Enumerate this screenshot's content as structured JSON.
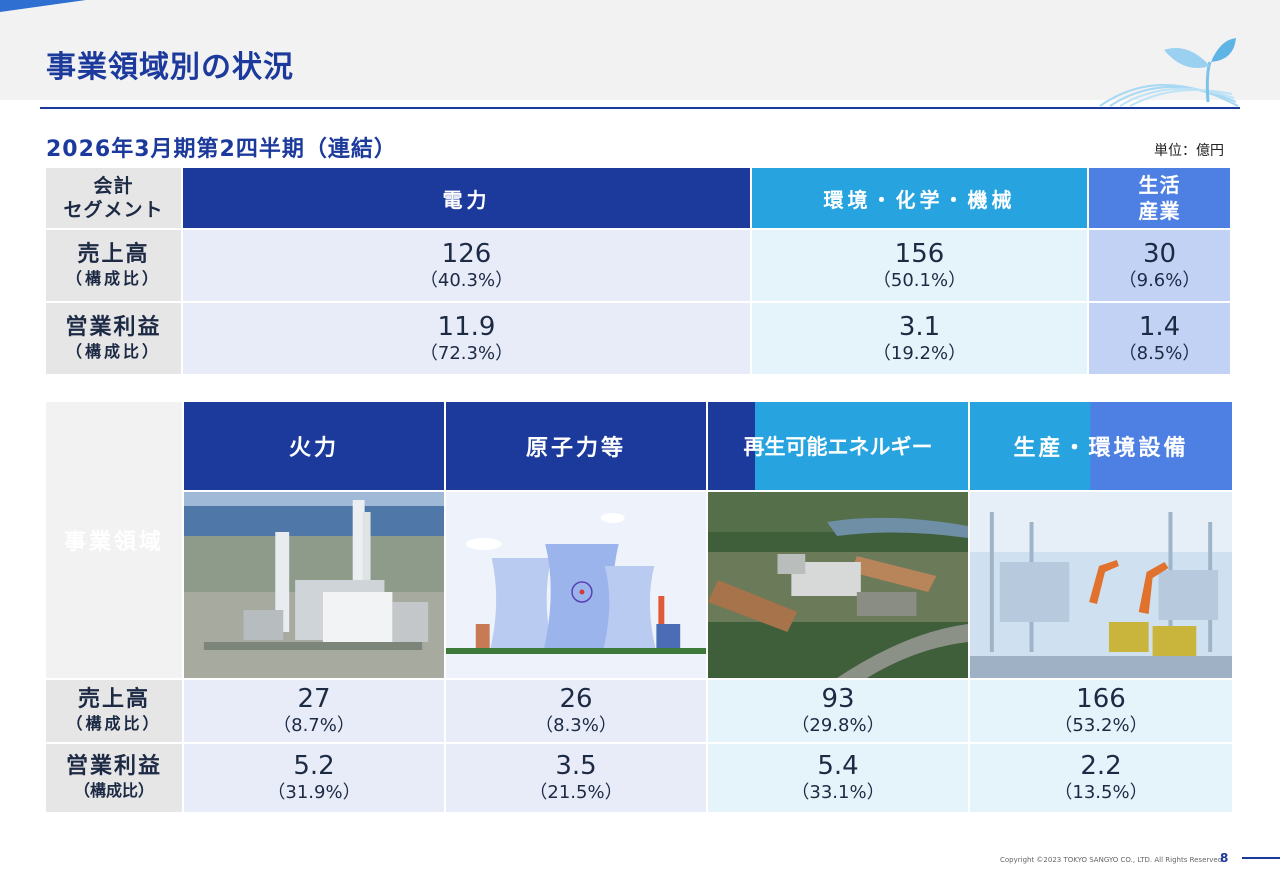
{
  "header": {
    "title": "事業領域別の状況"
  },
  "subtitle": "2026年3月期第2四半期（連結）",
  "unit": "単位：億円",
  "segment_table": {
    "corner_label": [
      "会計",
      "セグメント"
    ],
    "columns": [
      {
        "label": "電力",
        "color": "#1c3a9c"
      },
      {
        "label": "環境・化学・機械",
        "color": "#27a3df"
      },
      {
        "label": "生活産業",
        "label_lines": [
          "生活",
          "産業"
        ],
        "color": "#4e7fe3"
      }
    ],
    "rows": [
      {
        "label": "売上高",
        "sublabel": "（構成比）",
        "cells": [
          {
            "value": "126",
            "ratio": "（40.3%）"
          },
          {
            "value": "156",
            "ratio": "（50.1%）"
          },
          {
            "value": "30",
            "ratio": "（9.6%）"
          }
        ]
      },
      {
        "label": "営業利益",
        "sublabel": "（構成比）",
        "cells": [
          {
            "value": "11.9",
            "ratio": "（72.3%）"
          },
          {
            "value": "3.1",
            "ratio": "（19.2%）"
          },
          {
            "value": "1.4",
            "ratio": "（8.5%）"
          }
        ]
      }
    ]
  },
  "area_table": {
    "corner_label": "事業領域",
    "columns": [
      {
        "label": "火力",
        "image": "thermal-power-plant-photo"
      },
      {
        "label": "原子力等",
        "image": "nuclear-cooling-towers-illustration"
      },
      {
        "label": "再生可能エネルギー",
        "image": "biomass-power-plant-photo"
      },
      {
        "label": "生産・環境設備",
        "image": "factory-robot-line-photo"
      }
    ],
    "rows": [
      {
        "label": "売上高",
        "sublabel": "（構成比）",
        "cells": [
          {
            "value": "27",
            "ratio": "（8.7%）"
          },
          {
            "value": "26",
            "ratio": "（8.3%）"
          },
          {
            "value": "93",
            "ratio": "（29.8%）"
          },
          {
            "value": "166",
            "ratio": "（53.2%）"
          }
        ]
      },
      {
        "label": "営業利益",
        "sublabel": "（構成比）",
        "cells": [
          {
            "value": "5.2",
            "ratio": "（31.9%）"
          },
          {
            "value": "3.5",
            "ratio": "（21.5%）"
          },
          {
            "value": "5.4",
            "ratio": "（33.1%）"
          },
          {
            "value": "2.2",
            "ratio": "（13.5%）"
          }
        ]
      }
    ]
  },
  "footer": {
    "copyright": "Copyright ©2023 TOKYO SANGYO CO., LTD. All Rights Reserved",
    "page_number": "8"
  }
}
